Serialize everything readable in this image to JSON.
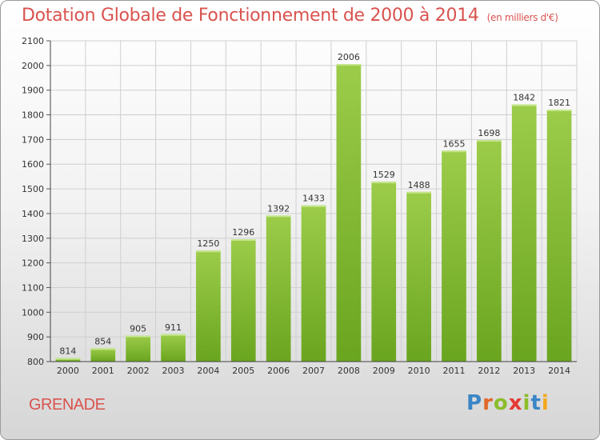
{
  "header": {
    "title": "Dotation Globale de Fonctionnement de 2000 à 2014",
    "unit": "(en milliers d'€)"
  },
  "footer": {
    "commune": "GRENADE",
    "brand_letters": [
      "P",
      "r",
      "o",
      "x",
      "i",
      "t",
      "i"
    ],
    "brand_colors": [
      "#3b86c6",
      "#e0682a",
      "#8bbd2c",
      "#e53935",
      "#8bbd2c",
      "#3b86c6",
      "#f2a81d"
    ]
  },
  "chart_data": {
    "type": "bar",
    "categories": [
      "2000",
      "2001",
      "2002",
      "2003",
      "2004",
      "2005",
      "2006",
      "2007",
      "2008",
      "2009",
      "2010",
      "2011",
      "2012",
      "2013",
      "2014"
    ],
    "values": [
      814,
      854,
      905,
      911,
      1250,
      1296,
      1392,
      1433,
      2006,
      1529,
      1488,
      1655,
      1698,
      1842,
      1821
    ],
    "title": "Dotation Globale de Fonctionnement de 2000 à 2014",
    "ylim": [
      800,
      2100
    ],
    "yticks": [
      800,
      900,
      1000,
      1100,
      1200,
      1300,
      1400,
      1500,
      1600,
      1700,
      1800,
      1900,
      2000,
      2100
    ],
    "grid": true,
    "bar_color_top": "#9ccc4a",
    "bar_color_bottom": "#6aa51f",
    "grid_color": "#cfcfcf",
    "label_color": "#333333"
  }
}
